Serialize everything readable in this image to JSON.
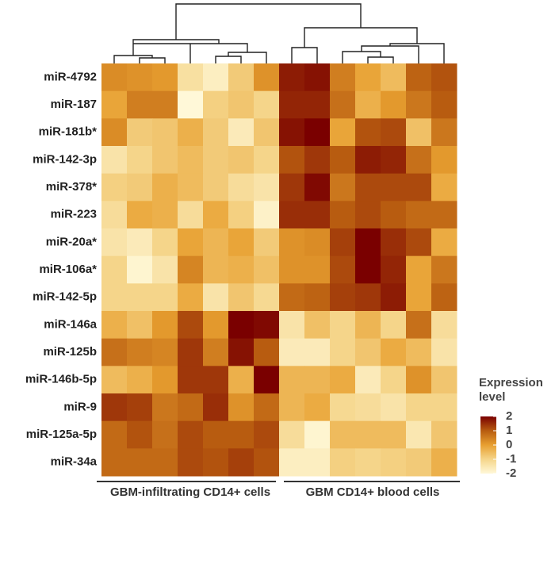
{
  "chart_data": {
    "type": "heatmap",
    "rows": [
      "miR-4792",
      "miR-187",
      "miR-181b*",
      "miR-142-3p",
      "miR-378*",
      "miR-223",
      "miR-20a*",
      "miR-106a*",
      "miR-142-5p",
      "miR-146a",
      "miR-125b",
      "miR-146b-5p",
      "miR-9",
      "miR-125a-5p",
      "miR-34a"
    ],
    "columns": [
      null,
      null,
      null,
      null,
      null,
      null,
      null,
      null,
      null,
      null,
      null,
      null,
      null,
      null
    ],
    "column_groups": [
      "GBM-infiltrating CD14+ cells",
      "GBM CD14+ blood cells"
    ],
    "values": [
      [
        0.3,
        0.2,
        0.1,
        -1.3,
        -1.7,
        -0.8,
        0.2,
        1.7,
        1.8,
        0.5,
        -0.1,
        -0.5,
        0.9,
        1.1
      ],
      [
        -0.1,
        0.5,
        0.5,
        -2,
        -0.9,
        -0.7,
        -1.0,
        1.6,
        1.6,
        0.7,
        -0.3,
        0.1,
        0.6,
        1.0
      ],
      [
        0.3,
        -0.8,
        -0.7,
        -0.3,
        -0.8,
        -1.6,
        -0.7,
        1.8,
        2.0,
        -0.1,
        1.1,
        1.2,
        -0.6,
        0.6
      ],
      [
        -1.4,
        -1.0,
        -0.7,
        -0.5,
        -0.8,
        -0.7,
        -1.0,
        1.1,
        1.4,
        1.0,
        1.7,
        1.6,
        0.7,
        0.1
      ],
      [
        -0.9,
        -0.8,
        -0.3,
        -0.5,
        -0.8,
        -1.2,
        -1.4,
        1.4,
        1.9,
        0.6,
        1.2,
        1.2,
        1.2,
        -0.2
      ],
      [
        -1.2,
        -0.2,
        -0.3,
        -1.2,
        -0.2,
        -0.9,
        -1.8,
        1.5,
        1.5,
        1.0,
        1.2,
        1.0,
        0.8,
        0.8
      ],
      [
        -1.4,
        -1.6,
        -1.0,
        -0.1,
        -0.4,
        -0.1,
        -0.8,
        0.2,
        0.3,
        1.3,
        2.0,
        1.5,
        1.2,
        -0.2
      ],
      [
        -1.0,
        -1.9,
        -1.4,
        0.4,
        -0.4,
        -0.3,
        -0.6,
        0.2,
        0.2,
        1.2,
        2.0,
        1.6,
        -0.1,
        0.6
      ],
      [
        -1.0,
        -1.0,
        -1.0,
        -0.2,
        -1.4,
        -0.7,
        -1.1,
        0.8,
        0.9,
        1.3,
        1.4,
        1.7,
        -0.1,
        0.9
      ],
      [
        -0.3,
        -0.6,
        0.1,
        1.2,
        0.1,
        2.0,
        1.9,
        -1.4,
        -0.6,
        -1.0,
        -0.4,
        -1.0,
        0.7,
        -1.2
      ],
      [
        0.7,
        0.5,
        0.4,
        1.4,
        0.5,
        1.8,
        1.0,
        -1.6,
        -1.6,
        -1.0,
        -0.7,
        -0.2,
        -0.5,
        -1.4
      ],
      [
        -0.5,
        -0.3,
        0.1,
        1.4,
        1.4,
        -0.3,
        2.3,
        -0.4,
        -0.4,
        -0.2,
        -1.6,
        -1.0,
        0.2,
        -0.7
      ],
      [
        1.4,
        1.3,
        0.6,
        0.8,
        1.5,
        0.2,
        0.8,
        -0.4,
        -0.2,
        -1.1,
        -1.2,
        -1.4,
        -1.0,
        -1.0
      ],
      [
        0.8,
        1.1,
        0.7,
        1.2,
        1.0,
        1.0,
        1.2,
        -1.2,
        -1.9,
        -0.5,
        -0.5,
        -0.5,
        -1.5,
        -0.7
      ],
      [
        0.8,
        0.8,
        0.8,
        1.2,
        1.1,
        1.3,
        1.1,
        -1.7,
        -1.7,
        -0.9,
        -1.0,
        -0.9,
        -0.8,
        -0.3
      ]
    ],
    "colorscale": [
      "#fff8d8",
      "#f5d58a",
      "#e8a030",
      "#b85c10",
      "#7a0000"
    ],
    "colorbar": {
      "title": "Expression level",
      "lim": [
        -2,
        2
      ],
      "ticks": [
        2,
        1,
        0,
        -1,
        -2
      ]
    }
  }
}
